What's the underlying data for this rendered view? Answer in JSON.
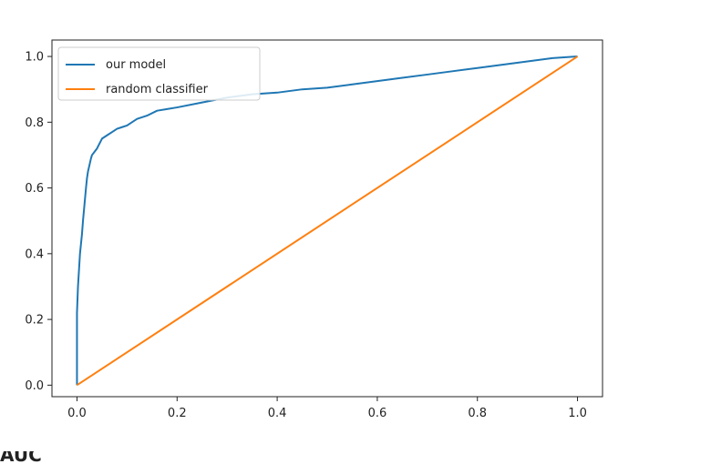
{
  "chart_data": {
    "type": "line",
    "title": "",
    "xlabel": "",
    "ylabel": "",
    "xlim": [
      -0.05,
      1.05
    ],
    "ylim": [
      -0.035,
      1.05
    ],
    "xticks": [
      "0.0",
      "0.2",
      "0.4",
      "0.6",
      "0.8",
      "1.0"
    ],
    "yticks": [
      "0.0",
      "0.2",
      "0.4",
      "0.6",
      "0.8",
      "1.0"
    ],
    "grid": false,
    "legend_position": "top-left",
    "series": [
      {
        "name": "our model",
        "color": "#1f77b4",
        "x": [
          0.0,
          0.0,
          0.002,
          0.004,
          0.006,
          0.008,
          0.01,
          0.012,
          0.015,
          0.018,
          0.02,
          0.022,
          0.025,
          0.028,
          0.03,
          0.035,
          0.04,
          0.045,
          0.05,
          0.06,
          0.07,
          0.08,
          0.09,
          0.1,
          0.12,
          0.14,
          0.16,
          0.18,
          0.2,
          0.25,
          0.3,
          0.35,
          0.4,
          0.45,
          0.5,
          0.55,
          0.6,
          0.65,
          0.7,
          0.75,
          0.8,
          0.85,
          0.9,
          0.95,
          1.0
        ],
        "y": [
          0.0,
          0.22,
          0.3,
          0.35,
          0.4,
          0.43,
          0.46,
          0.5,
          0.55,
          0.6,
          0.63,
          0.65,
          0.67,
          0.69,
          0.7,
          0.71,
          0.72,
          0.735,
          0.75,
          0.76,
          0.77,
          0.78,
          0.785,
          0.79,
          0.81,
          0.82,
          0.835,
          0.84,
          0.845,
          0.86,
          0.875,
          0.885,
          0.89,
          0.9,
          0.905,
          0.915,
          0.925,
          0.935,
          0.945,
          0.955,
          0.965,
          0.975,
          0.985,
          0.995,
          1.0
        ]
      },
      {
        "name": "random classifier",
        "color": "#ff7f0e",
        "x": [
          0.0,
          1.0
        ],
        "y": [
          0.0,
          1.0
        ]
      }
    ]
  },
  "footer_text": "AUC"
}
